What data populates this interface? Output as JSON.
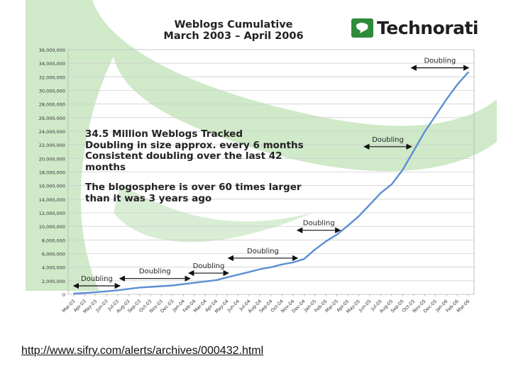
{
  "title_lines": [
    "Weblogs Cumulative",
    "March 2003 – April 2006"
  ],
  "brand": {
    "name": "Technorati",
    "icon": "speech-bubble-icon",
    "color": "#2e8b3a"
  },
  "annotation_lines": [
    "34.5 Million Weblogs Tracked",
    "Doubling in size approx. every 6 months",
    "Consistent doubling over the last 42 months",
    "The blogosphere is over 60 times larger",
    "than it was 3 years ago"
  ],
  "source_link": "http://www.sifry.com/alerts/archives/000432.html",
  "colors": {
    "line": "#5b8fd1",
    "swoosh": "#cfe9c9",
    "grid": "#cfcfcf",
    "text": "#222222"
  },
  "chart_data": {
    "type": "line",
    "title": "Weblogs Cumulative March 2003 – April 2006",
    "xlabel": "",
    "ylabel": "",
    "ylim": [
      0,
      36000000
    ],
    "grid": true,
    "categories": [
      "Mar-03",
      "Apr-03",
      "May-03",
      "Jun-03",
      "Jul-03",
      "Aug-03",
      "Sep-03",
      "Oct-03",
      "Nov-03",
      "Dec-03",
      "Jan-04",
      "Feb-04",
      "Mar-04",
      "Apr-04",
      "May-04",
      "Jun-04",
      "Jul-04",
      "Aug-04",
      "Sep-04",
      "Oct-04",
      "Nov-04",
      "Dec-04",
      "Jan-05",
      "Feb-05",
      "Mar-05",
      "Apr-05",
      "May-05",
      "Jun-05",
      "Jul-05",
      "Aug-05",
      "Sep-05",
      "Oct-05",
      "Nov-05",
      "Dec-05",
      "Jan-06",
      "Feb-06",
      "Mar-06"
    ],
    "y_ticks": [
      "0",
      "2,000,000",
      "4,000,000",
      "6,000,000",
      "8,000,000",
      "10,000,000",
      "12,000,000",
      "14,000,000",
      "16,000,000",
      "18,000,000",
      "20,000,000",
      "22,000,000",
      "24,000,000",
      "26,000,000",
      "28,000,000",
      "30,000,000",
      "32,000,000",
      "34,000,000",
      "36,000,000"
    ],
    "y_tick_values": [
      0,
      2000000,
      4000000,
      6000000,
      8000000,
      10000000,
      12000000,
      14000000,
      16000000,
      18000000,
      20000000,
      22000000,
      24000000,
      26000000,
      28000000,
      30000000,
      32000000,
      34000000,
      36000000
    ],
    "series": [
      {
        "values": [
          100000,
          200000,
          300000,
          450000,
          600000,
          800000,
          1000000,
          1100000,
          1200000,
          1300000,
          1500000,
          1700000,
          1900000,
          2100000,
          2500000,
          2900000,
          3300000,
          3700000,
          4000000,
          4400000,
          4700000,
          5200000,
          6600000,
          7800000,
          8800000,
          10100000,
          11500000,
          13200000,
          14900000,
          16200000,
          18300000,
          21100000,
          23900000,
          26300000,
          28700000,
          30900000,
          32700000
        ]
      }
    ],
    "doubling_annotations": [
      {
        "label": "Doubling",
        "from": 0,
        "to": 4.2
      },
      {
        "label": "Doubling",
        "from": 4.2,
        "to": 10.6
      },
      {
        "label": "Doubling",
        "from": 10.5,
        "to": 14.1
      },
      {
        "label": "Doubling",
        "from": 14.1,
        "to": 20.4
      },
      {
        "label": "Doubling",
        "from": 20.4,
        "to": 24.3
      },
      {
        "label": "Doubling",
        "from": 26.5,
        "to": 30.8
      },
      {
        "label": "Doubling",
        "from": 30.8,
        "to": 36.3
      }
    ]
  }
}
